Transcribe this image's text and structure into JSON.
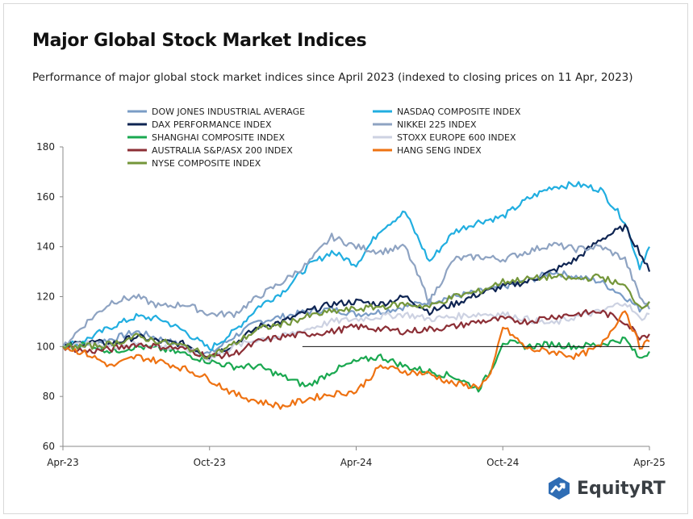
{
  "chart_data": {
    "type": "line",
    "title": "Major Global Stock Market Indices",
    "subtitle": "Performance of major global stock market indices since April 2023 (indexed to closing prices on 11 Apr, 2023)",
    "x_tick_labels": [
      "Apr-23",
      "Oct-23",
      "Apr-24",
      "Oct-24",
      "Apr-25"
    ],
    "x_ticks": [
      0,
      6,
      12,
      18,
      24
    ],
    "xlim": [
      0,
      24
    ],
    "ylim": [
      60,
      180
    ],
    "y_ticks": [
      60,
      80,
      100,
      120,
      140,
      160,
      180
    ],
    "grid": false,
    "legend_position": "top",
    "reference_line": {
      "y": 100,
      "x_from": 9.8,
      "x_to": 24
    },
    "x_unit_note": "months since Apr-23",
    "series": [
      {
        "name": "DOW JONES INDUSTRIAL AVERAGE",
        "color": "#7a9cc6",
        "points": [
          [
            0,
            100
          ],
          [
            1,
            101
          ],
          [
            2,
            103
          ],
          [
            3,
            106
          ],
          [
            4,
            103
          ],
          [
            5,
            100
          ],
          [
            6,
            97
          ],
          [
            7,
            104
          ],
          [
            8,
            110
          ],
          [
            9,
            112
          ],
          [
            10,
            114
          ],
          [
            11,
            115
          ],
          [
            12,
            113
          ],
          [
            13,
            114
          ],
          [
            14,
            116
          ],
          [
            15,
            118
          ],
          [
            16,
            120
          ],
          [
            17,
            122
          ],
          [
            18,
            124
          ],
          [
            19,
            126
          ],
          [
            20,
            130
          ],
          [
            21,
            128
          ],
          [
            22,
            126
          ],
          [
            23,
            120
          ],
          [
            23.6,
            115
          ],
          [
            24,
            118
          ]
        ]
      },
      {
        "name": "NASDAQ COMPOSITE INDEX",
        "color": "#21aee0",
        "points": [
          [
            0,
            100
          ],
          [
            1,
            103
          ],
          [
            2,
            108
          ],
          [
            3,
            112
          ],
          [
            4,
            111
          ],
          [
            5,
            106
          ],
          [
            6,
            99
          ],
          [
            7,
            106
          ],
          [
            8,
            116
          ],
          [
            9,
            122
          ],
          [
            10,
            132
          ],
          [
            11,
            138
          ],
          [
            12,
            133
          ],
          [
            13,
            147
          ],
          [
            14,
            154
          ],
          [
            15,
            134
          ],
          [
            16,
            146
          ],
          [
            17,
            150
          ],
          [
            18,
            152
          ],
          [
            19,
            159
          ],
          [
            20,
            164
          ],
          [
            21,
            165
          ],
          [
            22,
            163
          ],
          [
            23,
            150
          ],
          [
            23.6,
            132
          ],
          [
            24,
            140
          ]
        ]
      },
      {
        "name": "DAX PERFORMANCE INDEX",
        "color": "#0e2452",
        "points": [
          [
            0,
            100
          ],
          [
            1,
            102
          ],
          [
            2,
            101
          ],
          [
            3,
            104
          ],
          [
            4,
            102
          ],
          [
            5,
            101
          ],
          [
            6,
            96
          ],
          [
            7,
            101
          ],
          [
            8,
            108
          ],
          [
            9,
            110
          ],
          [
            10,
            114
          ],
          [
            11,
            117
          ],
          [
            12,
            118
          ],
          [
            13,
            117
          ],
          [
            14,
            120
          ],
          [
            15,
            114
          ],
          [
            16,
            117
          ],
          [
            17,
            121
          ],
          [
            18,
            124
          ],
          [
            19,
            126
          ],
          [
            20,
            130
          ],
          [
            21,
            135
          ],
          [
            22,
            143
          ],
          [
            23,
            148
          ],
          [
            23.6,
            138
          ],
          [
            24,
            130
          ]
        ]
      },
      {
        "name": "NIKKEI 225 INDEX",
        "color": "#8ea3c2",
        "points": [
          [
            0,
            100
          ],
          [
            1,
            110
          ],
          [
            2,
            118
          ],
          [
            3,
            120
          ],
          [
            4,
            116
          ],
          [
            5,
            117
          ],
          [
            6,
            113
          ],
          [
            7,
            113
          ],
          [
            8,
            120
          ],
          [
            9,
            126
          ],
          [
            10,
            133
          ],
          [
            11,
            144
          ],
          [
            12,
            140
          ],
          [
            13,
            138
          ],
          [
            14,
            140
          ],
          [
            15,
            118
          ],
          [
            16,
            135
          ],
          [
            17,
            136
          ],
          [
            18,
            135
          ],
          [
            19,
            138
          ],
          [
            20,
            141
          ],
          [
            21,
            139
          ],
          [
            22,
            140
          ],
          [
            23,
            135
          ],
          [
            23.6,
            120
          ],
          [
            24,
            115
          ]
        ]
      },
      {
        "name": "SHANGHAI COMPOSITE INDEX",
        "color": "#1aa850",
        "points": [
          [
            0,
            100
          ],
          [
            1,
            101
          ],
          [
            2,
            98
          ],
          [
            3,
            100
          ],
          [
            4,
            99
          ],
          [
            5,
            97
          ],
          [
            6,
            94
          ],
          [
            7,
            92
          ],
          [
            8,
            92
          ],
          [
            9,
            88
          ],
          [
            10,
            84
          ],
          [
            11,
            90
          ],
          [
            12,
            94
          ],
          [
            13,
            96
          ],
          [
            14,
            92
          ],
          [
            15,
            90
          ],
          [
            16,
            88
          ],
          [
            17,
            83
          ],
          [
            17.5,
            90
          ],
          [
            18,
            102
          ],
          [
            19,
            100
          ],
          [
            20,
            101
          ],
          [
            21,
            100
          ],
          [
            22,
            101
          ],
          [
            23,
            103
          ],
          [
            23.6,
            95
          ],
          [
            24,
            98
          ]
        ]
      },
      {
        "name": "STOXX EUROPE 600 INDEX",
        "color": "#cdd2e2",
        "points": [
          [
            0,
            100
          ],
          [
            1,
            101
          ],
          [
            2,
            100
          ],
          [
            3,
            101
          ],
          [
            4,
            100
          ],
          [
            5,
            99
          ],
          [
            6,
            95
          ],
          [
            7,
            100
          ],
          [
            8,
            103
          ],
          [
            9,
            104
          ],
          [
            10,
            107
          ],
          [
            11,
            110
          ],
          [
            12,
            111
          ],
          [
            13,
            112
          ],
          [
            14,
            113
          ],
          [
            15,
            111
          ],
          [
            16,
            112
          ],
          [
            17,
            113
          ],
          [
            18,
            113
          ],
          [
            19,
            111
          ],
          [
            20,
            109
          ],
          [
            21,
            112
          ],
          [
            22,
            114
          ],
          [
            23,
            118
          ],
          [
            23.6,
            111
          ],
          [
            24,
            113
          ]
        ]
      },
      {
        "name": "AUSTRALIA S&P/ASX 200 INDEX",
        "color": "#8c2f36",
        "points": [
          [
            0,
            100
          ],
          [
            1,
            98
          ],
          [
            2,
            99
          ],
          [
            3,
            101
          ],
          [
            4,
            100
          ],
          [
            5,
            99
          ],
          [
            6,
            96
          ],
          [
            7,
            97
          ],
          [
            8,
            102
          ],
          [
            9,
            104
          ],
          [
            10,
            105
          ],
          [
            11,
            106
          ],
          [
            12,
            108
          ],
          [
            13,
            107
          ],
          [
            14,
            106
          ],
          [
            15,
            107
          ],
          [
            16,
            108
          ],
          [
            17,
            110
          ],
          [
            18,
            111
          ],
          [
            19,
            110
          ],
          [
            20,
            112
          ],
          [
            21,
            113
          ],
          [
            22,
            114
          ],
          [
            23,
            110
          ],
          [
            23.6,
            104
          ],
          [
            24,
            105
          ]
        ]
      },
      {
        "name": "HANG SENG INDEX",
        "color": "#ee7212",
        "points": [
          [
            0,
            100
          ],
          [
            1,
            97
          ],
          [
            2,
            92
          ],
          [
            3,
            96
          ],
          [
            4,
            94
          ],
          [
            5,
            91
          ],
          [
            6,
            87
          ],
          [
            7,
            81
          ],
          [
            8,
            78
          ],
          [
            9,
            76
          ],
          [
            10,
            79
          ],
          [
            11,
            81
          ],
          [
            12,
            82
          ],
          [
            13,
            92
          ],
          [
            14,
            90
          ],
          [
            15,
            89
          ],
          [
            16,
            85
          ],
          [
            17,
            84
          ],
          [
            17.5,
            88
          ],
          [
            18,
            108
          ],
          [
            19,
            99
          ],
          [
            20,
            98
          ],
          [
            21,
            96
          ],
          [
            22,
            100
          ],
          [
            23,
            115
          ],
          [
            23.6,
            100
          ],
          [
            24,
            102
          ]
        ]
      },
      {
        "name": "NYSE COMPOSITE INDEX",
        "color": "#74963a",
        "points": [
          [
            0,
            100
          ],
          [
            1,
            100
          ],
          [
            2,
            101
          ],
          [
            3,
            104
          ],
          [
            4,
            102
          ],
          [
            5,
            100
          ],
          [
            6,
            96
          ],
          [
            7,
            101
          ],
          [
            8,
            107
          ],
          [
            9,
            109
          ],
          [
            10,
            112
          ],
          [
            11,
            114
          ],
          [
            12,
            115
          ],
          [
            13,
            116
          ],
          [
            14,
            117
          ],
          [
            15,
            116
          ],
          [
            16,
            120
          ],
          [
            17,
            122
          ],
          [
            18,
            126
          ],
          [
            19,
            127
          ],
          [
            20,
            128
          ],
          [
            21,
            127
          ],
          [
            22,
            128
          ],
          [
            23,
            124
          ],
          [
            23.6,
            116
          ],
          [
            24,
            118
          ]
        ]
      }
    ]
  },
  "brand": {
    "name": "EquityRT",
    "color": "#3a3f44",
    "icon_color": "#2f6db4"
  }
}
